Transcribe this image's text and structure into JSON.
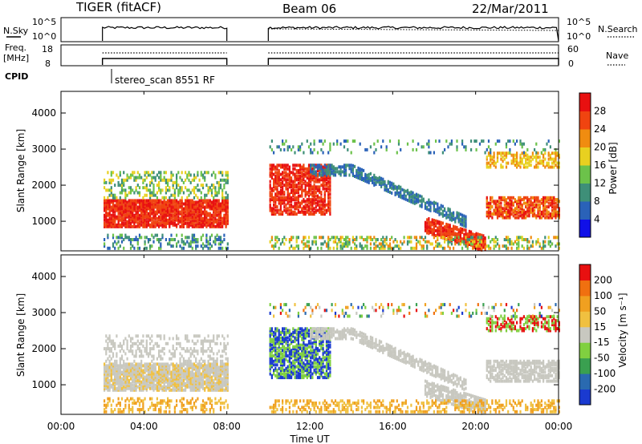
{
  "header": {
    "title": "TIGER (fitACF)",
    "beam": "Beam 06",
    "date": "22/Mar/2011"
  },
  "top_panel": {
    "nsky_label": "N.Sky",
    "nsky_ticks": [
      "10^5",
      "10^0"
    ],
    "nsearch_label": "N.Search",
    "nsearch_ticks": [
      "10^5",
      "10^0"
    ],
    "freq_label_line1": "Freq.",
    "freq_label_line2": "[MHz]",
    "freq_ticks": [
      "18",
      "8"
    ],
    "nave_label": "Nave",
    "nave_ticks": [
      "60",
      "0"
    ],
    "cpid_label": "CPID",
    "cpid_value": "stereo_scan 8551 RF"
  },
  "chart_data": [
    {
      "type": "heatmap",
      "name": "power",
      "ylabel": "Slant Range [km]",
      "y_ticks": [
        "1000",
        "2000",
        "3000",
        "4000"
      ],
      "ylim": [
        180,
        4600
      ],
      "colorbar_label": "Power [dB]",
      "colorbar_ticks": [
        "4",
        "8",
        "12",
        "16",
        "20",
        "24",
        "28"
      ],
      "colors": [
        "#1010e8",
        "#2a62b8",
        "#3e8f78",
        "#6cc24a",
        "#e8d020",
        "#f08c10",
        "#f04410",
        "#e81010"
      ],
      "data_windows_ut": [
        [
          2.0,
          8.0
        ],
        [
          10.0,
          24.0
        ]
      ]
    },
    {
      "type": "heatmap",
      "name": "velocity",
      "ylabel": "Slant Range [km]",
      "y_ticks": [
        "1000",
        "2000",
        "3000",
        "4000"
      ],
      "ylim": [
        180,
        4600
      ],
      "colorbar_label": "Velocity [m s⁻¹]",
      "colorbar_ticks": [
        "200",
        "100",
        "50",
        "15",
        "-15",
        "-50",
        "-100",
        "-200"
      ],
      "colors": [
        "#1a3ad0",
        "#2a6ab0",
        "#3aa050",
        "#80d040",
        "#c8c8c0",
        "#f0c040",
        "#f0a020",
        "#f07010",
        "#e81010"
      ],
      "data_windows_ut": [
        [
          2.0,
          8.0
        ],
        [
          10.0,
          24.0
        ]
      ]
    }
  ],
  "x_axis": {
    "label": "Time UT",
    "ticks": [
      "00:00",
      "04:00",
      "08:00",
      "12:00",
      "16:00",
      "20:00",
      "00:00"
    ]
  }
}
